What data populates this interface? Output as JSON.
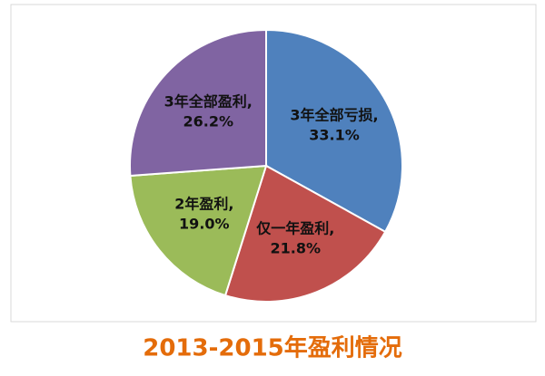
{
  "chart_data": {
    "type": "pie",
    "title": "2013-2015年盈利情况",
    "categories": [
      "3年全部亏损,",
      "仅一年盈利,",
      "2年盈利,",
      "3年全部盈利,"
    ],
    "values": [
      33.1,
      21.8,
      19.0,
      26.2
    ],
    "value_labels": [
      "33.1%",
      "21.8%",
      "19.0%",
      "26.2%"
    ],
    "colors": [
      "#4f81bd",
      "#c0504d",
      "#9bbb59",
      "#8064a2"
    ]
  }
}
